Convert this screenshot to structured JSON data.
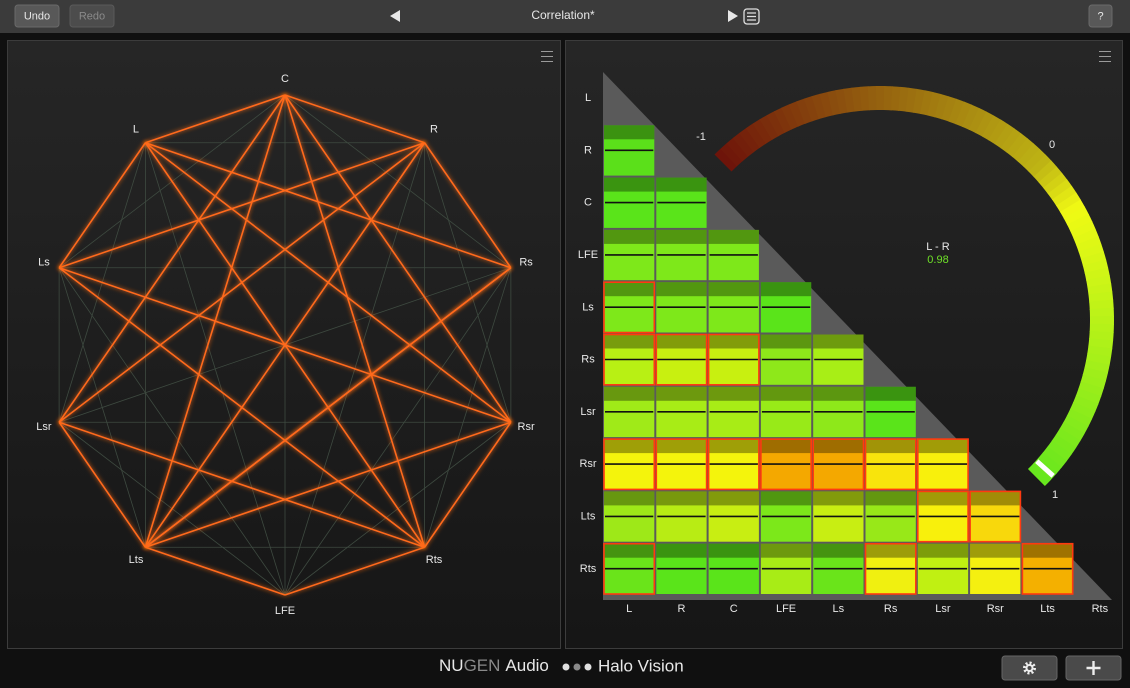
{
  "toolbar": {
    "undo": "Undo",
    "redo": "Redo",
    "title": "Correlation*",
    "help": "?"
  },
  "graph": {
    "nodes": [
      "C",
      "R",
      "Rs",
      "Rsr",
      "Rts",
      "LFE",
      "Lts",
      "Lsr",
      "Ls",
      "L"
    ]
  },
  "matrix": {
    "labels": [
      "L",
      "R",
      "C",
      "LFE",
      "Ls",
      "Rs",
      "Lsr",
      "Rsr",
      "Lts",
      "Rts"
    ],
    "cells": [
      [],
      [
        {
          "color": "#5be01a"
        }
      ],
      [
        {
          "color": "#5ae41a"
        },
        {
          "color": "#5ae41a"
        }
      ],
      [
        {
          "color": "#7ee81a"
        },
        {
          "color": "#7ee81a"
        },
        {
          "color": "#7ee81a"
        }
      ],
      [
        {
          "color": "#7ee81a",
          "alert": true
        },
        {
          "color": "#7ee81a"
        },
        {
          "color": "#7ee81a"
        },
        {
          "color": "#5ae41a"
        }
      ],
      [
        {
          "color": "#b8f014",
          "alert": true
        },
        {
          "color": "#c8f010",
          "alert": true
        },
        {
          "color": "#c8f010",
          "alert": true
        },
        {
          "color": "#8ee81a"
        },
        {
          "color": "#a8ee16"
        }
      ],
      [
        {
          "color": "#a0ea18"
        },
        {
          "color": "#a8ec16"
        },
        {
          "color": "#a8ec16"
        },
        {
          "color": "#98ea18"
        },
        {
          "color": "#8ee81a"
        },
        {
          "color": "#5ae41a"
        }
      ],
      [
        {
          "color": "#f4f40c",
          "alert": true
        },
        {
          "color": "#f4f40c",
          "alert": true
        },
        {
          "color": "#f4f40c",
          "alert": true
        },
        {
          "color": "#f4a800",
          "alert": true
        },
        {
          "color": "#f4a800",
          "alert": true
        },
        {
          "color": "#f8e40c",
          "alert": true
        },
        {
          "color": "#f8f00c",
          "alert": true
        }
      ],
      [
        {
          "color": "#9ee818"
        },
        {
          "color": "#b8ec14"
        },
        {
          "color": "#c8ee12"
        },
        {
          "color": "#7ce81a"
        },
        {
          "color": "#c8ee12"
        },
        {
          "color": "#98e818"
        },
        {
          "color": "#f8f00c",
          "alert": true
        },
        {
          "color": "#f8d80c",
          "alert": true
        }
      ],
      [
        {
          "color": "#6ae41a",
          "alert": true
        },
        {
          "color": "#5ae41a"
        },
        {
          "color": "#5ae41a"
        },
        {
          "color": "#a8ec16"
        },
        {
          "color": "#6ae41a"
        },
        {
          "color": "#f0f010",
          "alert": true
        },
        {
          "color": "#c0f012"
        },
        {
          "color": "#f4f010"
        },
        {
          "color": "#f4b000",
          "alert": true
        }
      ]
    ]
  },
  "meter": {
    "min": "-1",
    "mid": "0",
    "max": "1",
    "pair": "L - R",
    "value": "0.98"
  },
  "footer": {
    "brand_a": "NU",
    "brand_b": "GEN",
    "brand_c": "Audio",
    "product": "Halo Vision"
  }
}
